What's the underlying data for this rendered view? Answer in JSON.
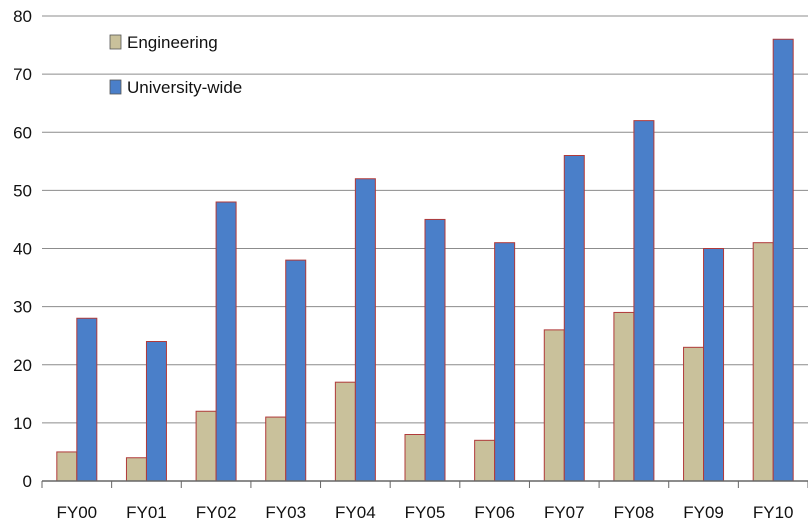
{
  "chart_data": {
    "type": "bar",
    "categories": [
      "FY00",
      "FY01",
      "FY02",
      "FY03",
      "FY04",
      "FY05",
      "FY06",
      "FY07",
      "FY08",
      "FY09",
      "FY10"
    ],
    "series": [
      {
        "name": "Engineering",
        "values": [
          5,
          4,
          12,
          11,
          17,
          8,
          7,
          26,
          29,
          23,
          41
        ],
        "color": "#c9c19b"
      },
      {
        "name": "University-wide",
        "values": [
          28,
          24,
          48,
          38,
          52,
          45,
          41,
          56,
          62,
          40,
          76
        ],
        "color": "#4a7fc9"
      }
    ],
    "bar_outline_color": "#b03a3a",
    "ylim": [
      0,
      80
    ],
    "yticks": [
      "0",
      "10",
      "20",
      "30",
      "40",
      "50",
      "60",
      "70",
      "80"
    ],
    "grid": true,
    "legend": "top-left",
    "title": "",
    "xlabel": "",
    "ylabel": ""
  }
}
